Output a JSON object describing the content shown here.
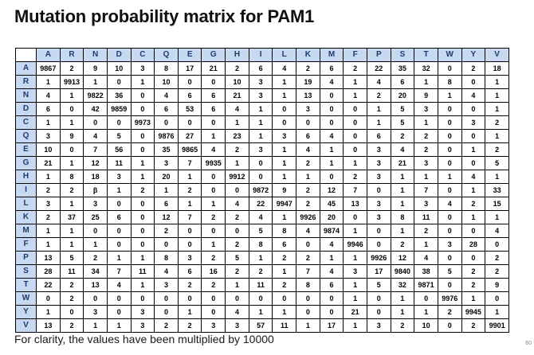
{
  "title": "Mutation probability matrix for PAM1",
  "footnote": "For clarity, the values have been multiplied by 10000",
  "page_number": "60",
  "header_color": "#c6d9f0",
  "header_text_color": "#1f3b6e",
  "matrix": {
    "columns": [
      "A",
      "R",
      "N",
      "D",
      "C",
      "Q",
      "E",
      "G",
      "H",
      "I",
      "L",
      "K",
      "M",
      "F",
      "P",
      "S",
      "T",
      "W",
      "Y",
      "V"
    ],
    "rows": [
      {
        "label": "A",
        "values": [
          "9867",
          "2",
          "9",
          "10",
          "3",
          "8",
          "17",
          "21",
          "2",
          "6",
          "4",
          "2",
          "6",
          "2",
          "22",
          "35",
          "32",
          "0",
          "2",
          "18"
        ]
      },
      {
        "label": "R",
        "values": [
          "1",
          "9913",
          "1",
          "0",
          "1",
          "10",
          "0",
          "0",
          "10",
          "3",
          "1",
          "19",
          "4",
          "1",
          "4",
          "6",
          "1",
          "8",
          "0",
          "1"
        ]
      },
      {
        "label": "N",
        "values": [
          "4",
          "1",
          "9822",
          "36",
          "0",
          "4",
          "6",
          "6",
          "21",
          "3",
          "1",
          "13",
          "0",
          "1",
          "2",
          "20",
          "9",
          "1",
          "4",
          "1"
        ]
      },
      {
        "label": "D",
        "values": [
          "6",
          "0",
          "42",
          "9859",
          "0",
          "6",
          "53",
          "6",
          "4",
          "1",
          "0",
          "3",
          "0",
          "0",
          "1",
          "5",
          "3",
          "0",
          "0",
          "1"
        ]
      },
      {
        "label": "C",
        "values": [
          "1",
          "1",
          "0",
          "0",
          "9973",
          "0",
          "0",
          "0",
          "1",
          "1",
          "0",
          "0",
          "0",
          "0",
          "1",
          "5",
          "1",
          "0",
          "3",
          "2"
        ]
      },
      {
        "label": "Q",
        "values": [
          "3",
          "9",
          "4",
          "5",
          "0",
          "9876",
          "27",
          "1",
          "23",
          "1",
          "3",
          "6",
          "4",
          "0",
          "6",
          "2",
          "2",
          "0",
          "0",
          "1"
        ]
      },
      {
        "label": "E",
        "values": [
          "10",
          "0",
          "7",
          "56",
          "0",
          "35",
          "9865",
          "4",
          "2",
          "3",
          "1",
          "4",
          "1",
          "0",
          "3",
          "4",
          "2",
          "0",
          "1",
          "2"
        ]
      },
      {
        "label": "G",
        "values": [
          "21",
          "1",
          "12",
          "11",
          "1",
          "3",
          "7",
          "9935",
          "1",
          "0",
          "1",
          "2",
          "1",
          "1",
          "3",
          "21",
          "3",
          "0",
          "0",
          "5"
        ]
      },
      {
        "label": "H",
        "values": [
          "1",
          "8",
          "18",
          "3",
          "1",
          "20",
          "1",
          "0",
          "9912",
          "0",
          "1",
          "1",
          "0",
          "2",
          "3",
          "1",
          "1",
          "1",
          "4",
          "1"
        ]
      },
      {
        "label": "I",
        "values": [
          "2",
          "2",
          "β",
          "1",
          "2",
          "1",
          "2",
          "0",
          "0",
          "9872",
          "9",
          "2",
          "12",
          "7",
          "0",
          "1",
          "7",
          "0",
          "1",
          "33"
        ]
      },
      {
        "label": "L",
        "values": [
          "3",
          "1",
          "3",
          "0",
          "0",
          "6",
          "1",
          "1",
          "4",
          "22",
          "9947",
          "2",
          "45",
          "13",
          "3",
          "1",
          "3",
          "4",
          "2",
          "15"
        ]
      },
      {
        "label": "K",
        "values": [
          "2",
          "37",
          "25",
          "6",
          "0",
          "12",
          "7",
          "2",
          "2",
          "4",
          "1",
          "9926",
          "20",
          "0",
          "3",
          "8",
          "11",
          "0",
          "1",
          "1"
        ]
      },
      {
        "label": "M",
        "values": [
          "1",
          "1",
          "0",
          "0",
          "0",
          "2",
          "0",
          "0",
          "0",
          "5",
          "8",
          "4",
          "9874",
          "1",
          "0",
          "1",
          "2",
          "0",
          "0",
          "4"
        ]
      },
      {
        "label": "F",
        "values": [
          "1",
          "1",
          "1",
          "0",
          "0",
          "0",
          "0",
          "1",
          "2",
          "8",
          "6",
          "0",
          "4",
          "9946",
          "0",
          "2",
          "1",
          "3",
          "28",
          "0"
        ]
      },
      {
        "label": "P",
        "values": [
          "13",
          "5",
          "2",
          "1",
          "1",
          "8",
          "3",
          "2",
          "5",
          "1",
          "2",
          "2",
          "1",
          "1",
          "9926",
          "12",
          "4",
          "0",
          "0",
          "2"
        ]
      },
      {
        "label": "S",
        "values": [
          "28",
          "11",
          "34",
          "7",
          "11",
          "4",
          "6",
          "16",
          "2",
          "2",
          "1",
          "7",
          "4",
          "3",
          "17",
          "9840",
          "38",
          "5",
          "2",
          "2"
        ]
      },
      {
        "label": "T",
        "values": [
          "22",
          "2",
          "13",
          "4",
          "1",
          "3",
          "2",
          "2",
          "1",
          "11",
          "2",
          "8",
          "6",
          "1",
          "5",
          "32",
          "9871",
          "0",
          "2",
          "9"
        ]
      },
      {
        "label": "W",
        "values": [
          "0",
          "2",
          "0",
          "0",
          "0",
          "0",
          "0",
          "0",
          "0",
          "0",
          "0",
          "0",
          "0",
          "1",
          "0",
          "1",
          "0",
          "9976",
          "1",
          "0"
        ]
      },
      {
        "label": "Y",
        "values": [
          "1",
          "0",
          "3",
          "0",
          "3",
          "0",
          "1",
          "0",
          "4",
          "1",
          "1",
          "0",
          "0",
          "21",
          "0",
          "1",
          "1",
          "2",
          "9945",
          "1"
        ]
      },
      {
        "label": "V",
        "values": [
          "13",
          "2",
          "1",
          "1",
          "3",
          "2",
          "2",
          "3",
          "3",
          "57",
          "11",
          "1",
          "17",
          "1",
          "3",
          "2",
          "10",
          "0",
          "2",
          "9901"
        ]
      }
    ]
  }
}
